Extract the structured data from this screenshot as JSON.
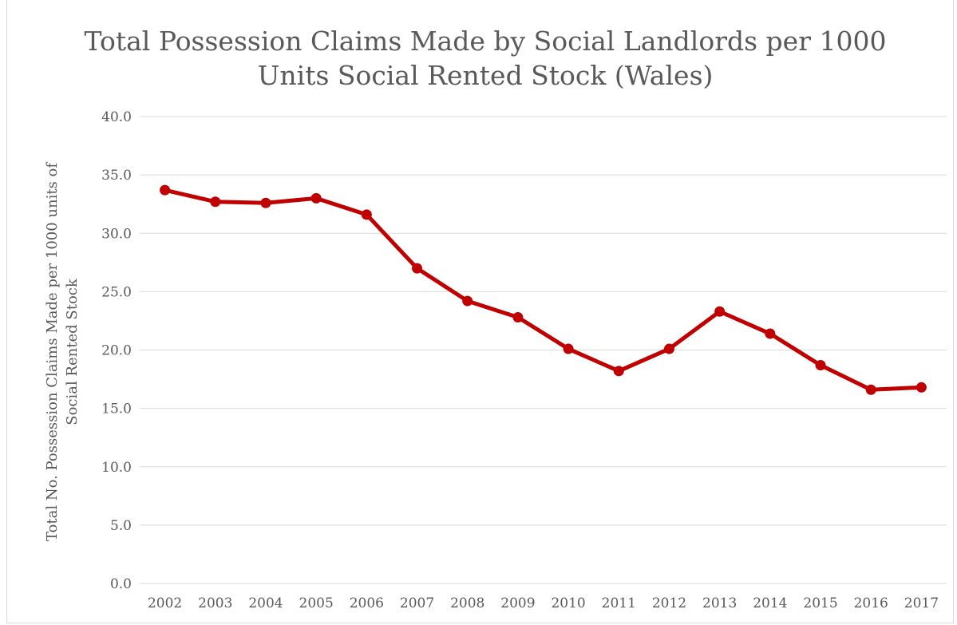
{
  "chart_data": {
    "type": "line",
    "title_lines": [
      "Total Possession Claims Made by Social Landlords per 1000",
      "Units Social Rented Stock (Wales)"
    ],
    "xlabel": "",
    "ylabel_lines": [
      "Total No. Possession Claims Made per 1000 units of",
      "Social Rented Stock"
    ],
    "categories": [
      "2002",
      "2003",
      "2004",
      "2005",
      "2006",
      "2007",
      "2008",
      "2009",
      "2010",
      "2011",
      "2012",
      "2013",
      "2014",
      "2015",
      "2016",
      "2017"
    ],
    "series": [
      {
        "values": [
          33.7,
          32.7,
          32.6,
          33.0,
          31.6,
          27.0,
          24.2,
          22.8,
          20.1,
          18.2,
          20.1,
          23.3,
          21.4,
          18.7,
          16.6,
          16.8
        ],
        "color": "#c00000"
      }
    ],
    "ylim": [
      0,
      40
    ],
    "yticks": [
      "0.0",
      "5.0",
      "10.0",
      "15.0",
      "20.0",
      "25.0",
      "30.0",
      "35.0",
      "40.0"
    ],
    "grid": true,
    "legend": "none"
  }
}
